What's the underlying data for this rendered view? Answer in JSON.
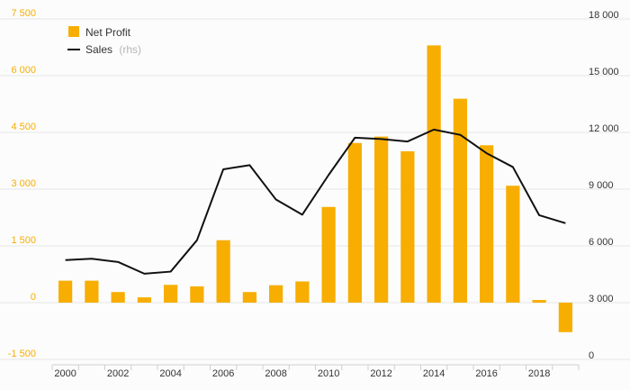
{
  "chart_data": {
    "type": "bar",
    "categories": [
      "2000",
      "2001",
      "2002",
      "2003",
      "2004",
      "2005",
      "2006",
      "2007",
      "2008",
      "2009",
      "2010",
      "2011",
      "2012",
      "2013",
      "2014",
      "2015",
      "2016",
      "2017",
      "2018",
      "2019"
    ],
    "x_tick_labels": [
      "2000",
      "2002",
      "2004",
      "2006",
      "2008",
      "2010",
      "2012",
      "2014",
      "2016",
      "2018"
    ],
    "series": [
      {
        "name": "Net Profit",
        "type": "bar",
        "axis": "left",
        "color": "#f7ae00",
        "values": [
          580,
          580,
          280,
          140,
          470,
          430,
          1650,
          280,
          460,
          560,
          2530,
          4220,
          4390,
          4000,
          6800,
          5390,
          4160,
          3090,
          70,
          -780
        ]
      },
      {
        "name": "Sales",
        "name_suffix": "(rhs)",
        "type": "line",
        "axis": "right",
        "color": "#111111",
        "values": [
          5250,
          5320,
          5150,
          4530,
          4640,
          6300,
          10050,
          10270,
          8450,
          7650,
          9750,
          11720,
          11650,
          11520,
          12150,
          11870,
          10900,
          10170,
          7620,
          7200
        ]
      }
    ],
    "y_left": {
      "ylim": [
        -1500,
        7500
      ],
      "ticks": [
        -1500,
        0,
        1500,
        3000,
        4500,
        6000,
        7500
      ],
      "tick_labels": [
        "-1 500",
        "0",
        "1 500",
        "3 000",
        "4 500",
        "6 000",
        "7 500"
      ],
      "color": "#f7ae00"
    },
    "y_right": {
      "ylim": [
        0,
        18000
      ],
      "ticks": [
        0,
        3000,
        6000,
        9000,
        12000,
        15000,
        18000
      ],
      "tick_labels": [
        "0",
        "3 000",
        "6 000",
        "9 000",
        "12 000",
        "15 000",
        "18 000"
      ]
    },
    "grid": true,
    "legend_position": "top-left"
  }
}
